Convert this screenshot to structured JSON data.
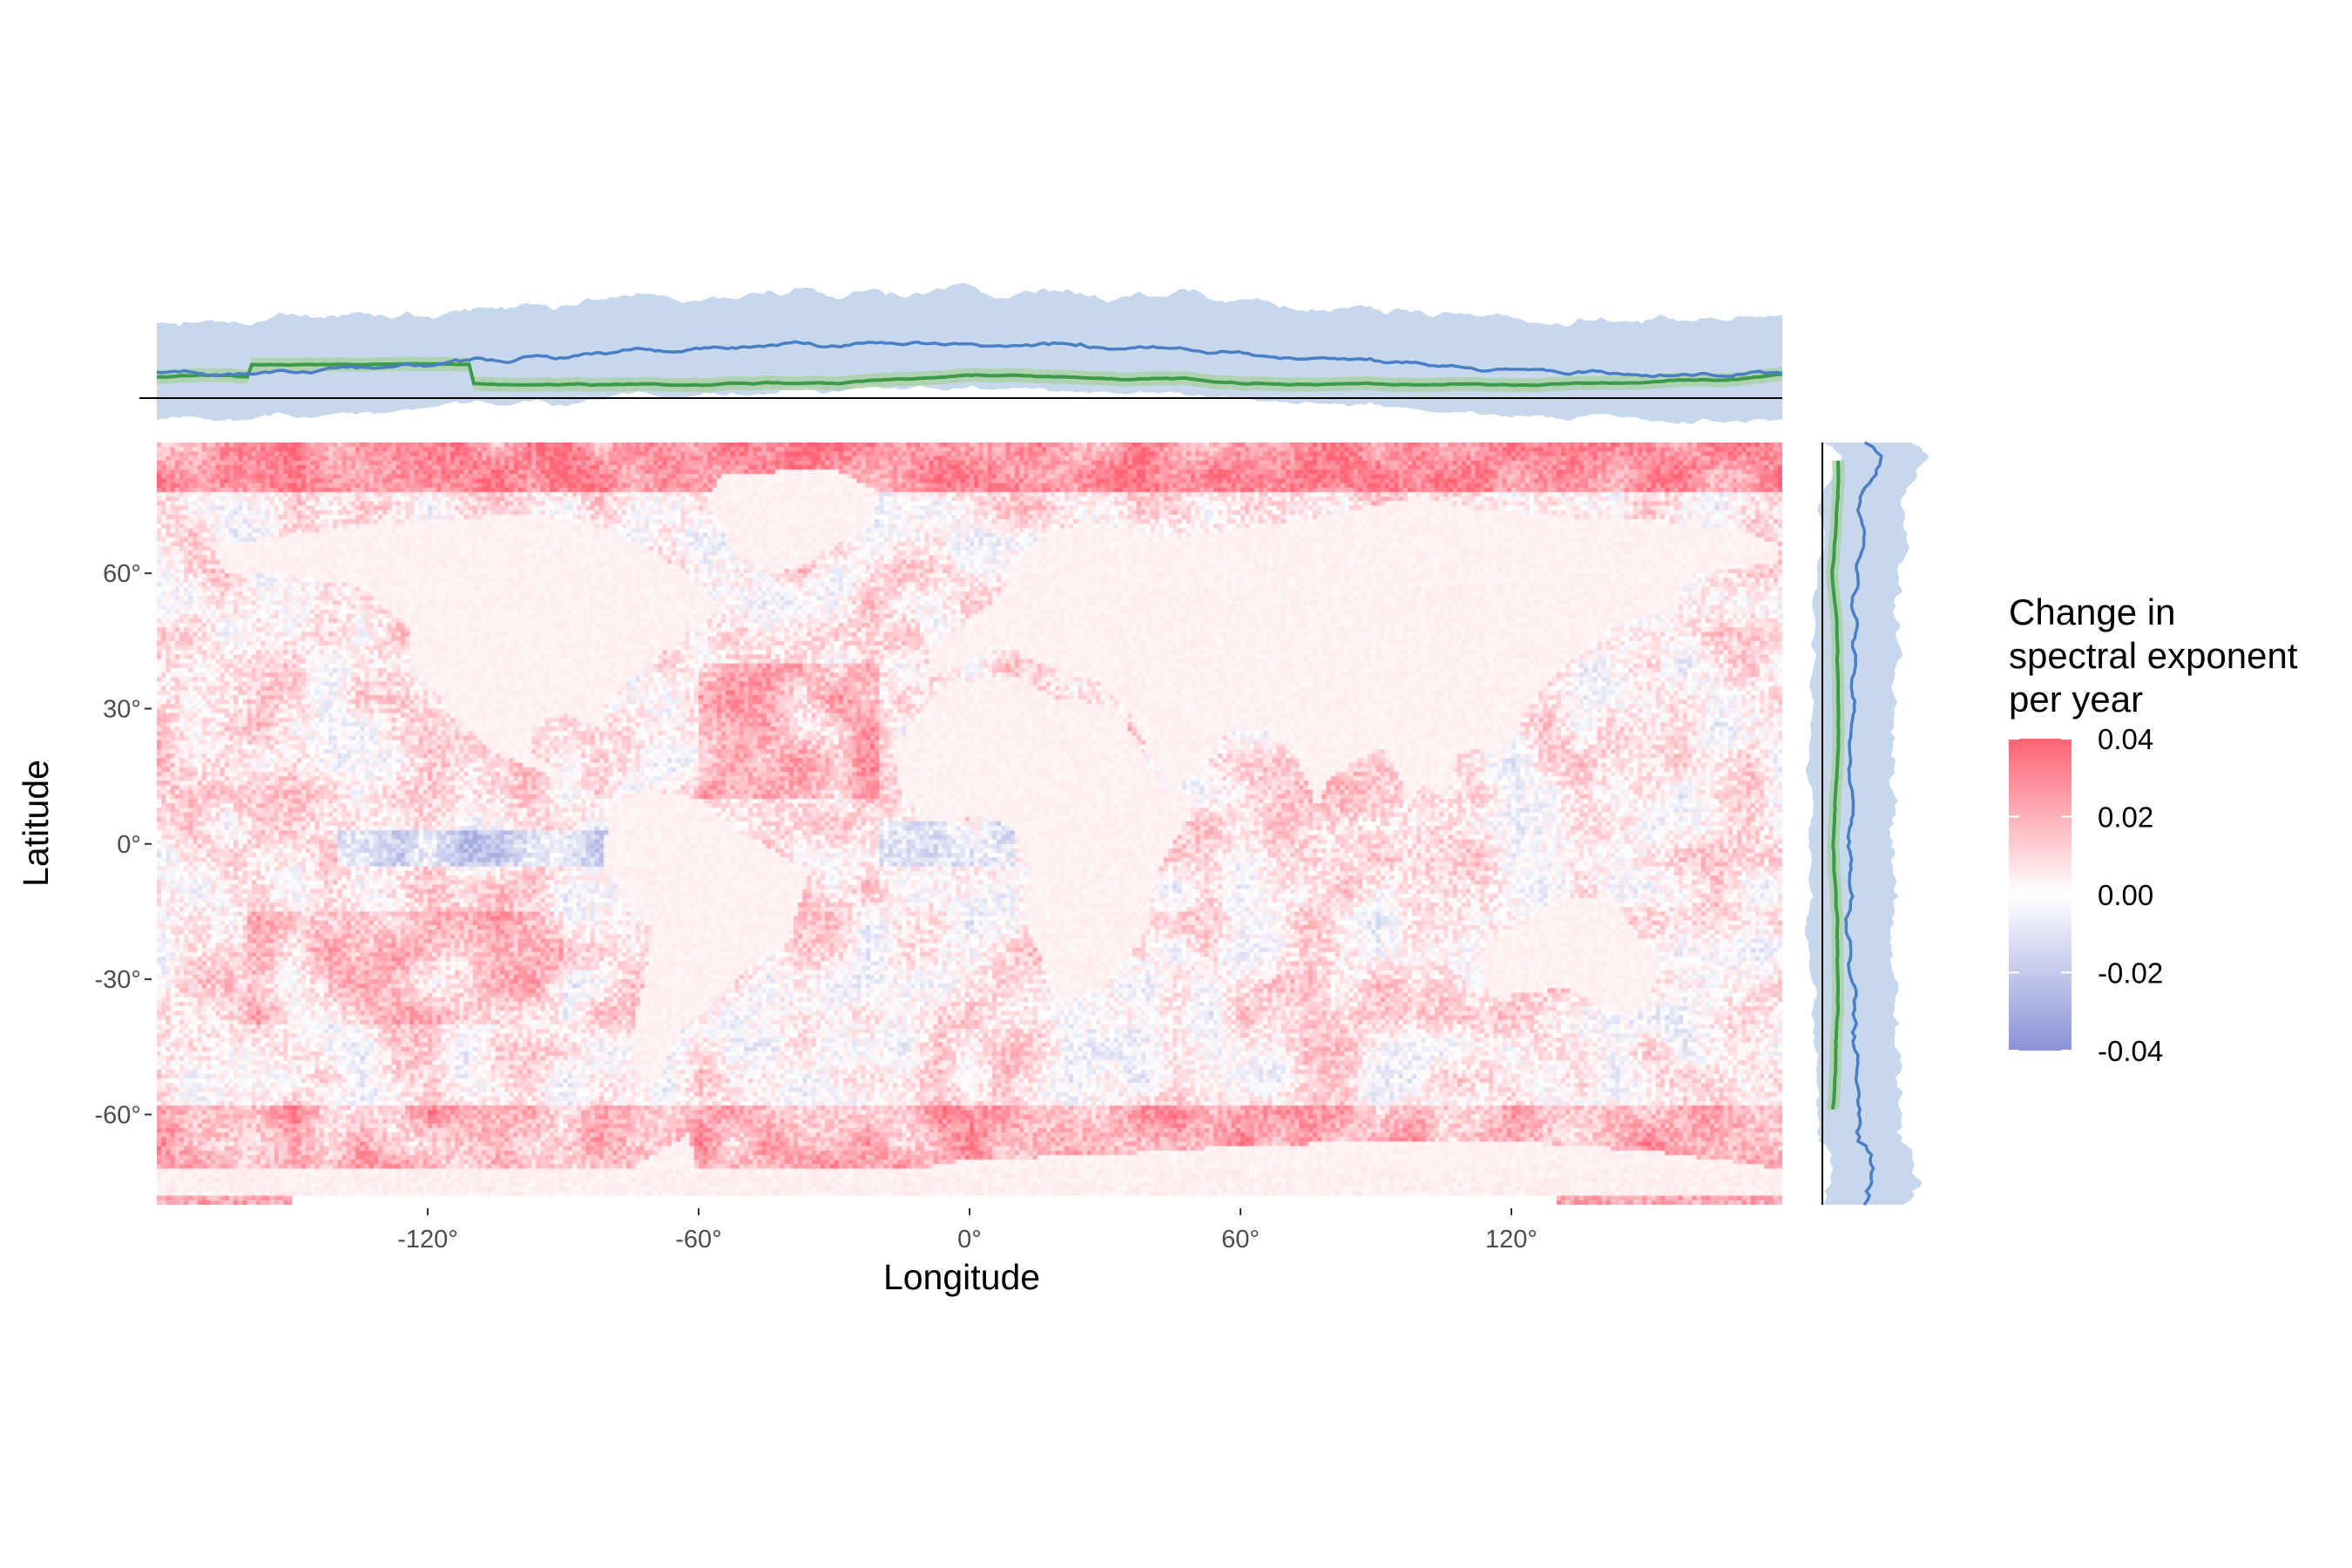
{
  "map": {
    "xlabel": "Longitude",
    "ylabel": "Latitude",
    "x_ticks": [
      "-120°",
      "-60°",
      "0°",
      "60°",
      "120°"
    ],
    "x_tick_values": [
      -120,
      -60,
      0,
      60,
      120
    ],
    "y_ticks": [
      "60°",
      "30°",
      "0°",
      "-30°",
      "-60°"
    ],
    "y_tick_values": [
      60,
      30,
      0,
      -30,
      -60
    ],
    "xlim": [
      -180,
      180
    ],
    "ylim": [
      -80,
      89
    ],
    "grid": false
  },
  "legend": {
    "title_lines": [
      "Change in",
      "spectral exponent",
      "per year"
    ],
    "labels": [
      "0.04",
      "0.02",
      "0.00",
      "-0.02",
      "-0.04"
    ],
    "values": [
      0.04,
      0.02,
      0.0,
      -0.02,
      -0.04
    ],
    "placement": "right",
    "color_high": "#ff6375",
    "color_mid": "#ffffff",
    "color_low": "#8a92d6"
  },
  "marginals": {
    "band_color": "#c7d8ec",
    "blue_line_color": "#4a7ec6",
    "green_line_color": "#3c9a4a",
    "green_band_color": "#a9d2a4",
    "axis_line_color": "#000000"
  },
  "chart_data": {
    "type": "heatmap",
    "xlabel": "Longitude",
    "ylabel": "Latitude",
    "xlim": [
      -180,
      180
    ],
    "ylim": [
      -80,
      89
    ],
    "legend_title": "Change in spectral exponent per year",
    "color_range": [
      -0.04,
      0.04
    ]
  }
}
